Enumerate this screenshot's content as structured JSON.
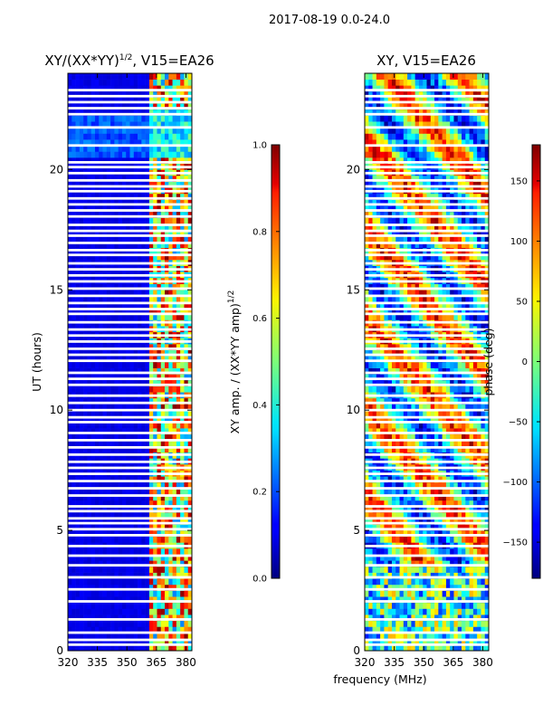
{
  "chart_data": {
    "suptitle": "2017-08-19 0.0-24.0",
    "shared_xlabel": "frequency (MHz)",
    "panels": [
      {
        "type": "heatmap",
        "title": "XY/(XX*YY)^{1/2}, V15=EA26",
        "title_main": "XY/(XX*YY)",
        "title_sup": "1/2",
        "title_tail": ", V15=EA26",
        "xlabel": "frequency (MHz)",
        "ylabel": "UT (hours)",
        "xlim": [
          320,
          383
        ],
        "ylim": [
          0,
          24
        ],
        "xticks": [
          320,
          335,
          350,
          365,
          380
        ],
        "yticks": [
          0,
          5,
          10,
          15,
          20
        ],
        "colormap": "jet",
        "colorbar": {
          "label": "XY amp. / (XX*YY amp)^{1/2}",
          "label_main": "XY amp. / (XX*YY amp)",
          "label_sup": "1/2",
          "range": [
            0.0,
            1.0
          ],
          "ticks": [
            "0.0",
            "0.2",
            "0.4",
            "0.6",
            "0.8",
            "1.0"
          ]
        },
        "description_values": {
          "background_level": 0.08,
          "high_band_mhz": [
            361,
            383
          ],
          "high_band_level": 0.65
        }
      },
      {
        "type": "heatmap",
        "title": "XY, V15=EA26",
        "xlabel": "frequency (MHz)",
        "ylabel": "",
        "xlim": [
          320,
          383
        ],
        "ylim": [
          0,
          24
        ],
        "xticks": [
          320,
          335,
          350,
          365,
          380
        ],
        "yticks": [
          0,
          5,
          10,
          15,
          20
        ],
        "colormap": "jet",
        "colorbar": {
          "label": "phase (deg)",
          "range": [
            -180,
            180
          ],
          "ticks": [
            "−150",
            "−100",
            "−50",
            "0",
            "50",
            "100",
            "150"
          ]
        }
      }
    ],
    "flagged_gaps_hours": [
      0.25,
      0.45,
      0.75,
      1.3,
      2.05,
      2.55,
      3.05,
      3.55,
      3.95,
      4.35,
      4.8,
      5.05,
      5.3,
      5.5,
      5.8,
      6.0,
      6.45,
      6.75,
      7.05,
      7.35,
      7.6,
      7.85,
      8.15,
      8.45,
      8.75,
      9.05,
      9.5,
      9.7,
      10.0,
      10.3,
      10.6,
      11.05,
      11.3,
      11.55,
      12.05,
      12.3,
      12.55,
      12.85,
      13.1,
      13.35,
      13.65,
      14.0,
      14.2,
      14.45,
      14.75,
      15.05,
      15.35,
      15.6,
      15.85,
      16.1,
      16.45,
      16.65,
      16.95,
      17.25,
      17.45,
      17.7,
      18.05,
      18.3,
      18.55,
      18.8,
      19.1,
      19.3,
      19.55,
      19.85,
      20.1,
      20.3,
      21.0,
      21.75,
      22.3,
      22.55,
      22.8,
      23.05,
      23.3
    ]
  }
}
